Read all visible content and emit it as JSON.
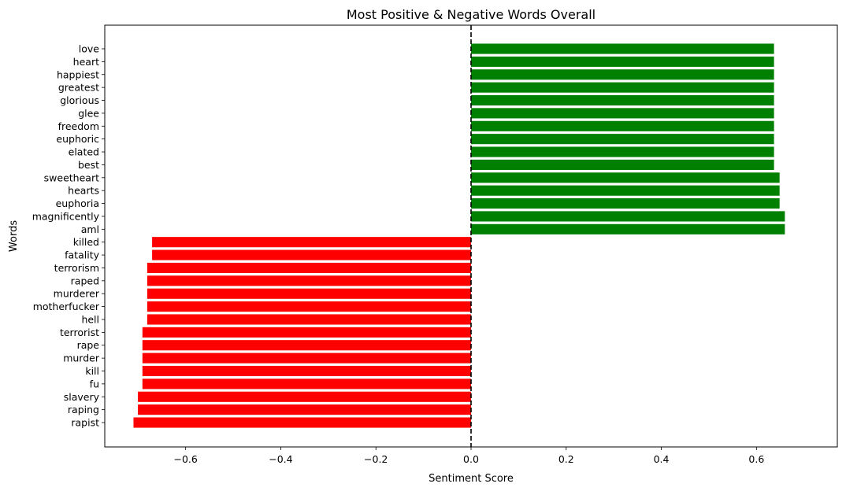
{
  "chart_data": {
    "type": "bar",
    "orientation": "horizontal",
    "title": "Most Positive & Negative Words Overall",
    "xlabel": "Sentiment Score",
    "ylabel": "Words",
    "xlim": [
      -0.77,
      0.77
    ],
    "xticks": [
      -0.6,
      -0.4,
      -0.2,
      0.0,
      0.2,
      0.4,
      0.6
    ],
    "xtick_labels": [
      "−0.6",
      "−0.4",
      "−0.2",
      "0.0",
      "0.2",
      "0.4",
      "0.6"
    ],
    "reference_line": {
      "x": 0,
      "style": "dashed",
      "color": "#000000"
    },
    "grid": false,
    "colors": {
      "positive": "#008000",
      "negative": "#ff0000"
    },
    "categories": [
      "love",
      "heart",
      "happiest",
      "greatest",
      "glorious",
      "glee",
      "freedom",
      "euphoric",
      "elated",
      "best",
      "sweetheart",
      "hearts",
      "euphoria",
      "magnificently",
      "aml",
      "killed",
      "fatality",
      "terrorism",
      "raped",
      "murderer",
      "motherfucker",
      "hell",
      "terrorist",
      "rape",
      "murder",
      "kill",
      "fu",
      "slavery",
      "raping",
      "rapist"
    ],
    "values": [
      0.6369,
      0.6369,
      0.6369,
      0.6369,
      0.6369,
      0.6369,
      0.6369,
      0.6369,
      0.6369,
      0.6369,
      0.6486,
      0.6486,
      0.6486,
      0.6597,
      0.6597,
      -0.6705,
      -0.6705,
      -0.6808,
      -0.6808,
      -0.6808,
      -0.6808,
      -0.6808,
      -0.6908,
      -0.6908,
      -0.6908,
      -0.6908,
      -0.6908,
      -0.7003,
      -0.7003,
      -0.7096
    ]
  }
}
